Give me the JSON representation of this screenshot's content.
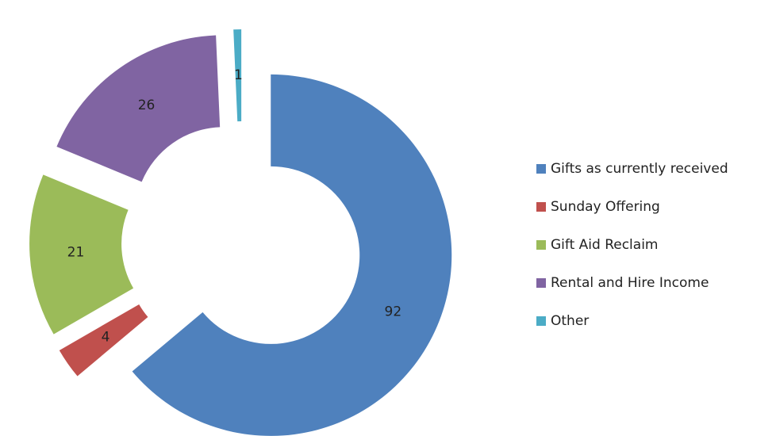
{
  "chart_data": {
    "type": "doughnut",
    "categories": [
      "Gifts as currently received",
      "Sunday Offering",
      "Gift Aid Reclaim",
      "Rental and Hire Income",
      "Other"
    ],
    "values": [
      92,
      4,
      21,
      26,
      1
    ],
    "colors": [
      "#4f81bd",
      "#c0504d",
      "#9bbb59",
      "#8064a2",
      "#4bacc6"
    ],
    "legend": "right"
  }
}
